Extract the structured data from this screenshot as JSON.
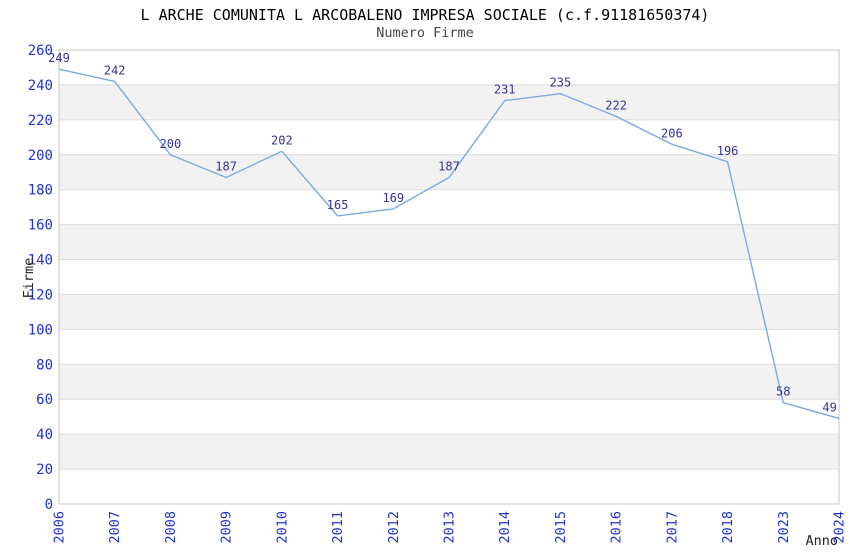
{
  "title": "L ARCHE COMUNITA L ARCOBALENO IMPRESA SOCIALE (c.f.91181650374)",
  "subtitle": "Numero Firme",
  "chart_data": {
    "type": "line",
    "x": [
      "2006",
      "2007",
      "2008",
      "2009",
      "2010",
      "2011",
      "2012",
      "2013",
      "2014",
      "2015",
      "2016",
      "2017",
      "2018",
      "2023",
      "2024"
    ],
    "series": [
      {
        "name": "Numero Firme",
        "values": [
          249,
          242,
          200,
          187,
          202,
          165,
          169,
          187,
          231,
          235,
          222,
          206,
          196,
          58,
          49
        ]
      }
    ],
    "point_labels": [
      "249",
      "242",
      "200",
      "187",
      "202",
      "165",
      "169",
      "187",
      "231",
      "235",
      "222",
      "206",
      "196",
      "58",
      "49"
    ],
    "xlabel": "Anno",
    "ylabel": "Firme",
    "ylim": [
      0,
      260
    ],
    "yticks": [
      0,
      20,
      40,
      60,
      80,
      100,
      120,
      140,
      160,
      180,
      200,
      220,
      240,
      260
    ],
    "grid": "horizontal-bands",
    "legend": "none",
    "colors": {
      "line": "#7aaae4",
      "tick_labels": "#2233cc",
      "point_labels": "#333399",
      "band": "#f2f2f2",
      "gridline": "#dcdcdc",
      "border": "#c6c6c6",
      "background": "#ffffff"
    }
  }
}
